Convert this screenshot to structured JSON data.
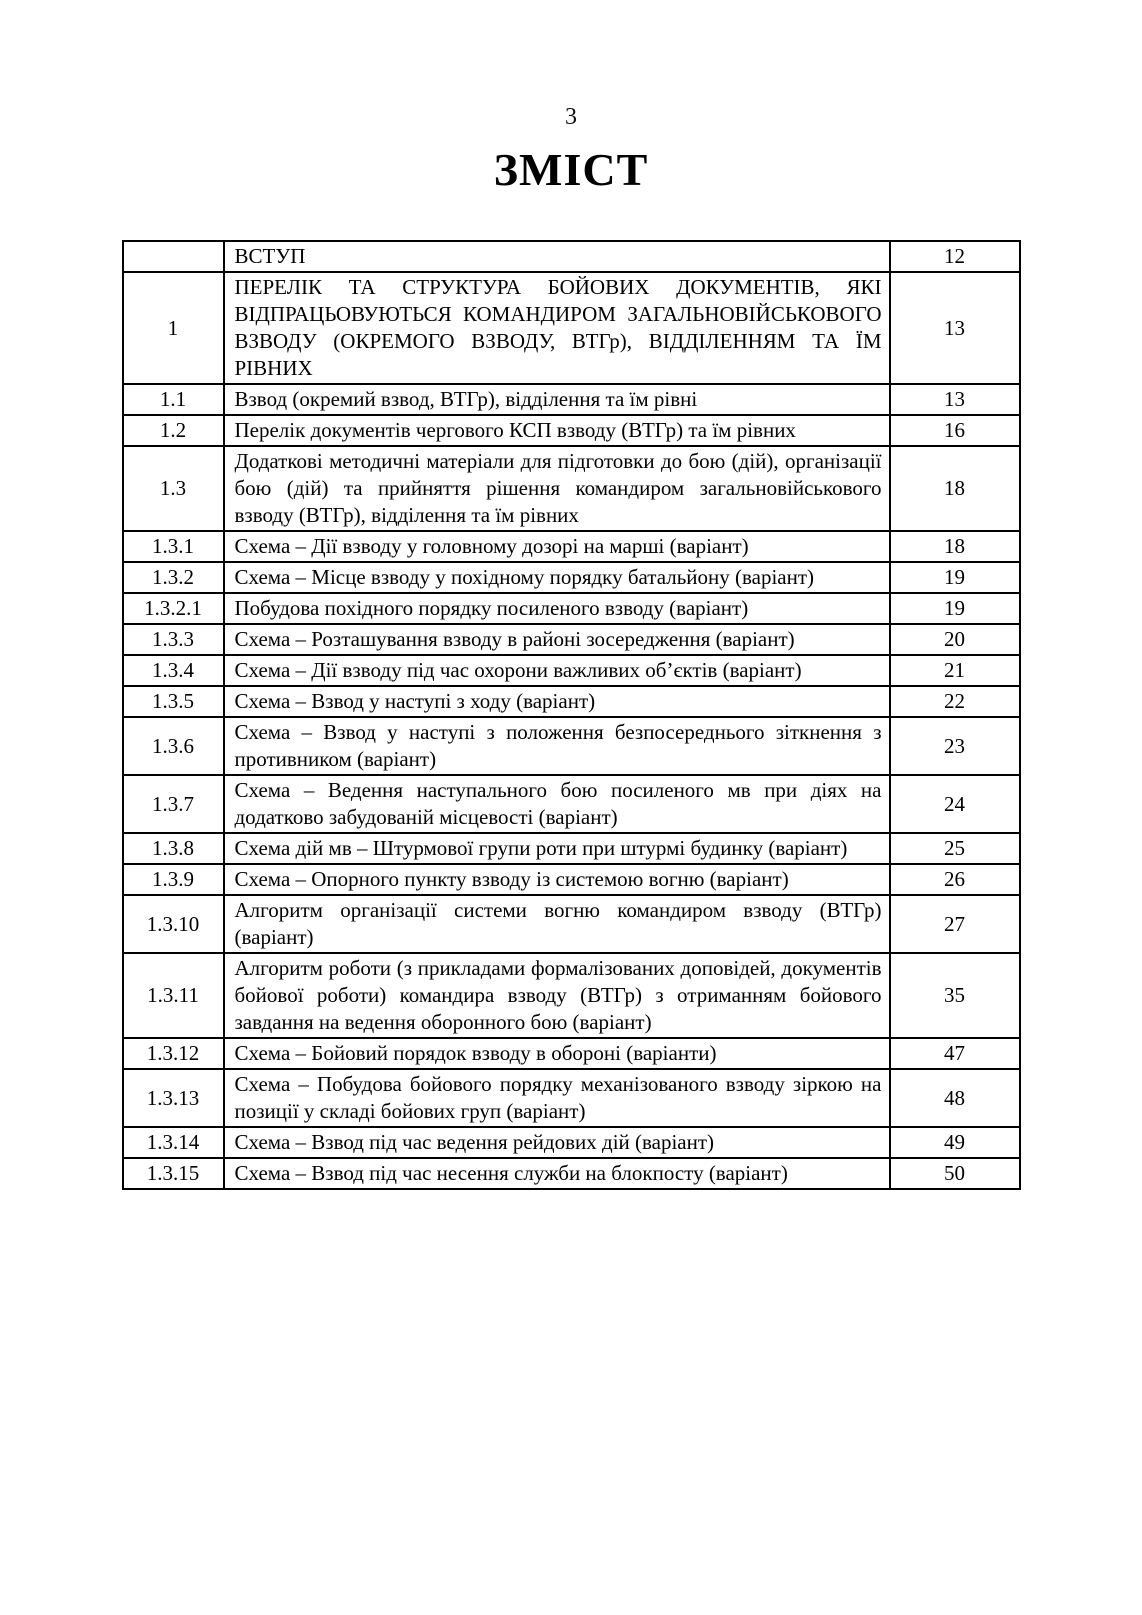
{
  "page": {
    "number": "3",
    "title": "ЗМІСТ"
  },
  "table": {
    "columns": [
      "section-number",
      "section-title",
      "page"
    ],
    "rows": [
      {
        "num": "",
        "title": "ВСТУП",
        "page": "12"
      },
      {
        "num": "1",
        "title": "ПЕРЕЛІК ТА СТРУКТУРА БОЙОВИХ ДОКУМЕНТІВ, ЯКІ ВІДПРАЦЬОВУЮТЬСЯ КОМАНДИРОМ ЗАГАЛЬНОВІЙСЬКОВОГО ВЗВОДУ (ОКРЕМОГО ВЗВОДУ, ВТГр), ВІДДІЛЕННЯМ ТА ЇМ РІВНИХ",
        "page": "13"
      },
      {
        "num": "1.1",
        "title": "Взвод (окремий взвод, ВТГр), відділення та їм рівні",
        "page": "13"
      },
      {
        "num": "1.2",
        "title": "Перелік документів чергового КСП взводу (ВТГр) та їм рівних",
        "page": "16"
      },
      {
        "num": "1.3",
        "title": "Додаткові методичні матеріали для підготовки до бою (дій), організації бою (дій) та прийняття рішення командиром загальновійськового взводу (ВТГр), відділення та їм рівних",
        "page": "18"
      },
      {
        "num": "1.3.1",
        "title": "Схема – Дії взводу у головному дозорі на марші (варіант)",
        "page": "18"
      },
      {
        "num": "1.3.2",
        "title": "Схема – Місце взводу у похідному порядку батальйону (варіант)",
        "page": "19"
      },
      {
        "num": "1.3.2.1",
        "title": "Побудова похідного порядку посиленого взводу (варіант)",
        "page": "19"
      },
      {
        "num": "1.3.3",
        "title": "Схема – Розташування взводу в районі зосередження (варіант)",
        "page": "20"
      },
      {
        "num": "1.3.4",
        "title": "Схема – Дії взводу під час охорони важливих об’єктів (варіант)",
        "page": "21"
      },
      {
        "num": "1.3.5",
        "title": "Схема – Взвод у наступі з ходу (варіант)",
        "page": "22"
      },
      {
        "num": "1.3.6",
        "title": "Схема – Взвод у наступі з положення безпосереднього зіткнення з противником (варіант)",
        "page": "23"
      },
      {
        "num": "1.3.7",
        "title": "Схема – Ведення наступального бою посиленого мв при діях на додатково забудованій місцевості (варіант)",
        "page": "24"
      },
      {
        "num": "1.3.8",
        "title": "Схема дій мв – Штурмової групи роти при штурмі будинку (варіант)",
        "page": "25"
      },
      {
        "num": "1.3.9",
        "title": "Схема – Опорного пункту взводу із системою вогню (варіант)",
        "page": "26"
      },
      {
        "num": "1.3.10",
        "title": "Алгоритм організації системи вогню командиром взводу (ВТГр) (варіант)",
        "page": "27"
      },
      {
        "num": "1.3.11",
        "title": "Алгоритм роботи (з прикладами формалізованих доповідей, документів бойової роботи) командира взводу (ВТГр) з отриманням бойового завдання на ведення оборонного бою (варіант)",
        "page": "35"
      },
      {
        "num": "1.3.12",
        "title": "Схема – Бойовий порядок взводу в обороні (варіанти)",
        "page": "47"
      },
      {
        "num": "1.3.13",
        "title": "Схема – Побудова бойового порядку механізованого взводу зіркою на позиції у складі бойових груп (варіант)",
        "page": "48"
      },
      {
        "num": "1.3.14",
        "title": "Схема – Взвод під час ведення рейдових дій (варіант)",
        "page": "49"
      },
      {
        "num": "1.3.15",
        "title": "Схема – Взвод під час несення служби на блокпосту (варіант)",
        "page": "50"
      }
    ]
  }
}
